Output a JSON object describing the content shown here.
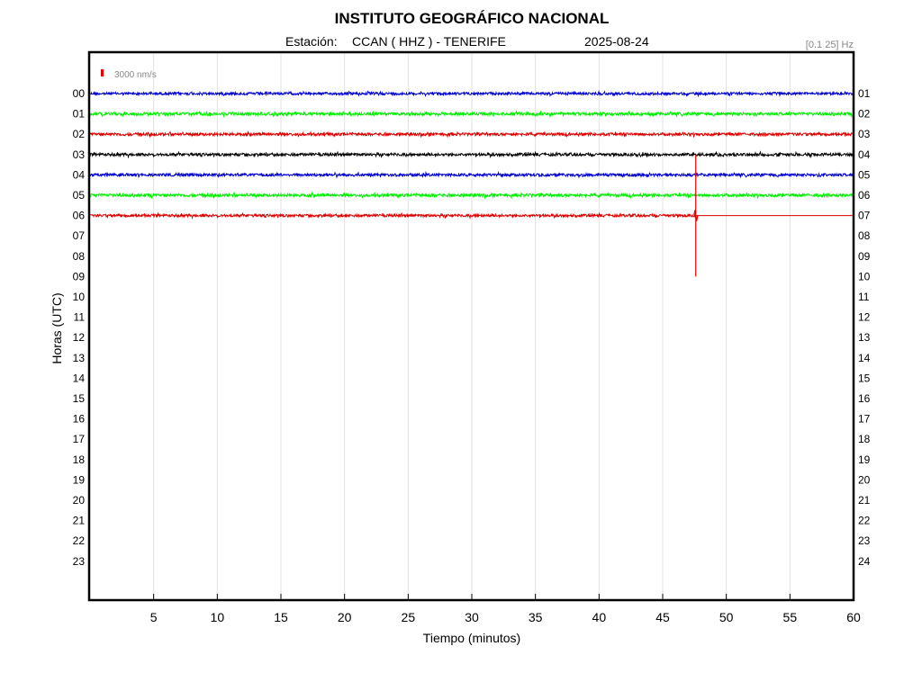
{
  "chart_data": {
    "type": "line",
    "title": "INSTITUTO GEOGRÁFICO NACIONAL",
    "subtitle": {
      "station_prefix": "Estación:",
      "station": "CCAN ( HHZ ) - TENERIFE",
      "date": "2025-08-24",
      "filter": "[0.1 25] Hz"
    },
    "scale_label": "3000 nm/s",
    "xlabel": "Tiempo (minutos)",
    "ylabel": "Horas (UTC)",
    "xlim": [
      0,
      60
    ],
    "x_ticks": [
      5,
      10,
      15,
      20,
      25,
      30,
      35,
      40,
      45,
      50,
      55,
      60
    ],
    "left_tick_labels": [
      "00",
      "01",
      "02",
      "03",
      "04",
      "05",
      "06",
      "07",
      "08",
      "09",
      "10",
      "11",
      "12",
      "13",
      "14",
      "15",
      "16",
      "17",
      "18",
      "19",
      "20",
      "21",
      "22",
      "23"
    ],
    "right_tick_labels": [
      "01",
      "02",
      "03",
      "04",
      "05",
      "06",
      "07",
      "08",
      "09",
      "10",
      "11",
      "12",
      "13",
      "14",
      "15",
      "16",
      "17",
      "18",
      "19",
      "20",
      "21",
      "22",
      "23",
      "24"
    ],
    "grid": true,
    "colors": {
      "blue": "#0000cc",
      "green": "#00ee00",
      "red": "#dd0000",
      "black": "#000000"
    },
    "series": [
      {
        "hour": "00",
        "color": "#0000cc",
        "start_min": 0,
        "end_min": 60,
        "noise_amp": 1.4
      },
      {
        "hour": "01",
        "color": "#00ee00",
        "start_min": 0,
        "end_min": 60,
        "noise_amp": 1.6
      },
      {
        "hour": "02",
        "color": "#dd0000",
        "start_min": 0,
        "end_min": 60,
        "noise_amp": 1.5
      },
      {
        "hour": "03",
        "color": "#000000",
        "start_min": 0,
        "end_min": 60,
        "noise_amp": 1.5
      },
      {
        "hour": "04",
        "color": "#0000cc",
        "start_min": 0,
        "end_min": 60,
        "noise_amp": 1.5
      },
      {
        "hour": "05",
        "color": "#00ee00",
        "start_min": 0,
        "end_min": 60,
        "noise_amp": 1.6
      },
      {
        "hour": "06",
        "color": "#dd0000",
        "start_min": 0,
        "end_min": 47.6,
        "noise_amp": 1.4
      }
    ],
    "spike": {
      "hour": "06",
      "minute": 47.6,
      "color": "#dd0000",
      "extent_up_hours": 3,
      "extent_down_hours": 3
    },
    "continuation": {
      "hour": "06",
      "color": "#dd0000",
      "start_min": 47.6,
      "end_min": 60
    }
  }
}
